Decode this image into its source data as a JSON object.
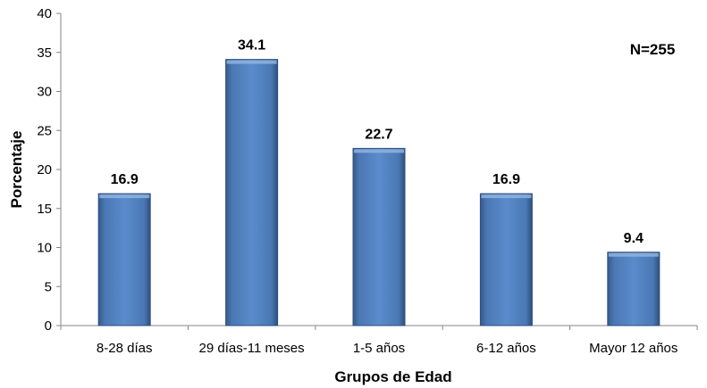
{
  "chart_data": {
    "type": "bar",
    "categories": [
      "8-28 días",
      "29 días-11 meses",
      "1-5 años",
      "6-12 años",
      "Mayor 12 años"
    ],
    "values": [
      16.9,
      34.1,
      22.7,
      16.9,
      9.4
    ],
    "data_labels": [
      "16.9",
      "34.1",
      "22.7",
      "16.9",
      "9.4"
    ],
    "xlabel": "Grupos de Edad",
    "ylabel": "Porcentaje",
    "ylim": [
      0,
      40
    ],
    "yticks": [
      0,
      5,
      10,
      15,
      20,
      25,
      30,
      35,
      40
    ],
    "annotation": "N=255",
    "grid": false,
    "bar_color": "#4f81bd"
  }
}
